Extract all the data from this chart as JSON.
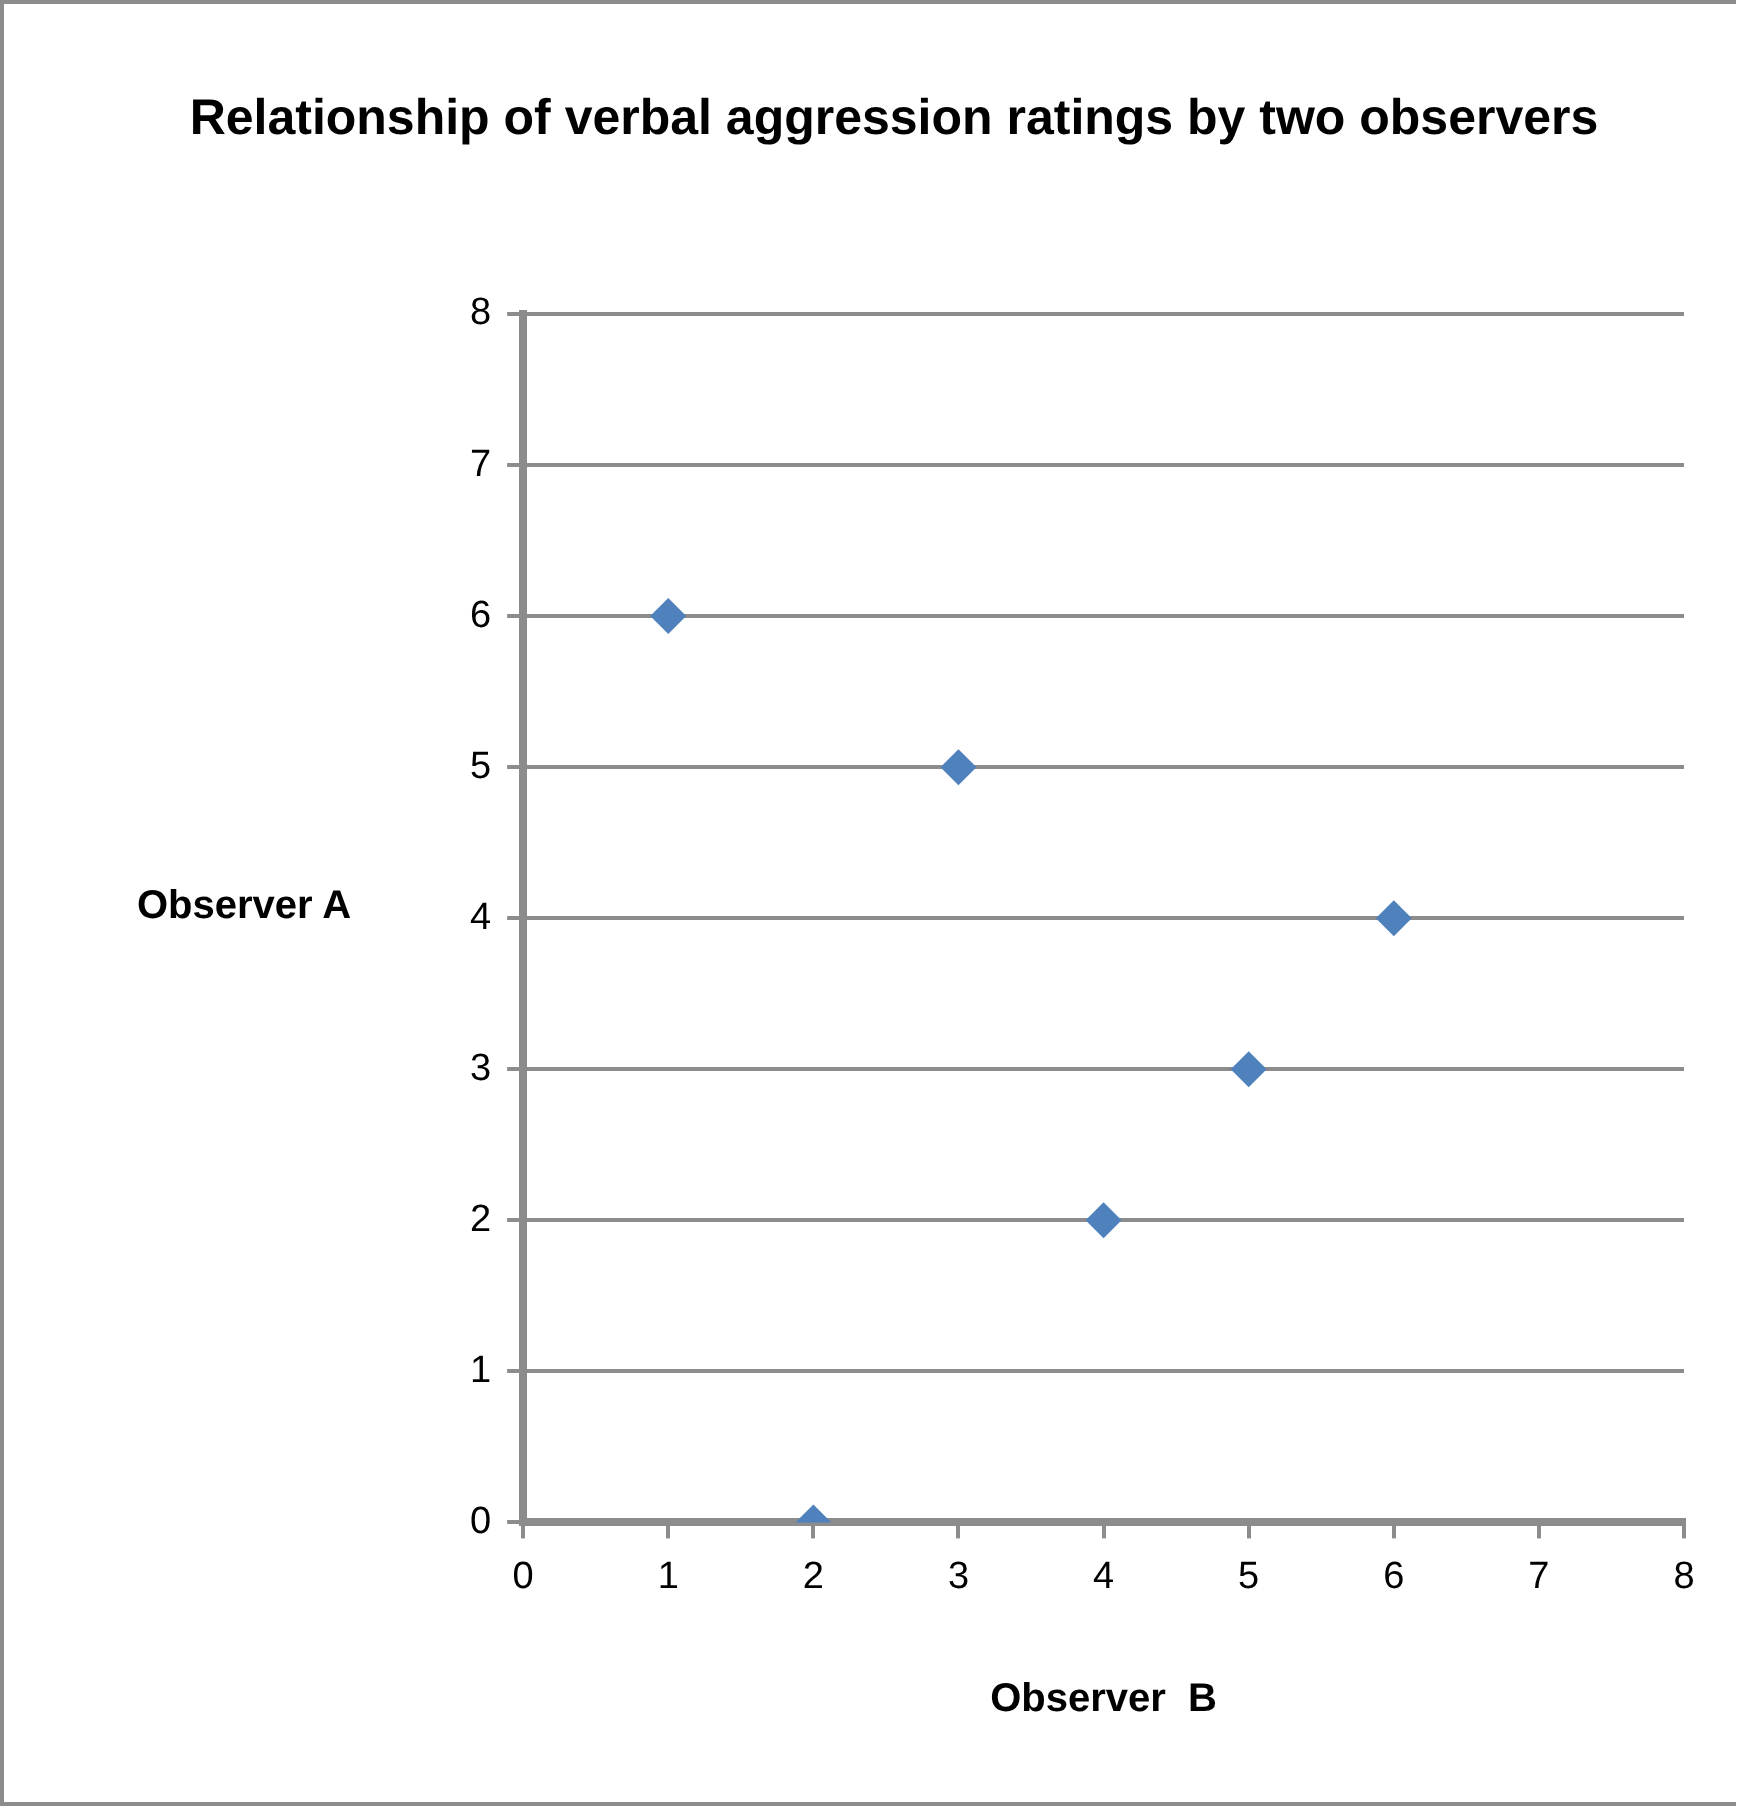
{
  "chart_data": {
    "type": "scatter",
    "title": "Relationship of verbal aggression ratings by two observers",
    "xlabel": "Observer  B",
    "ylabel": "Observer A",
    "x": [
      1,
      3,
      6,
      5,
      4,
      2
    ],
    "values": [
      6,
      5,
      4,
      3,
      2,
      0
    ],
    "color": "#4f81bd",
    "marker": "diamond",
    "xlim": [
      0,
      8
    ],
    "xticks": [
      0,
      1,
      2,
      3,
      4,
      5,
      6,
      7,
      8
    ],
    "ylim": [
      0,
      8
    ],
    "yticks": [
      0,
      1,
      2,
      3,
      4,
      5,
      6,
      7,
      8
    ],
    "grid": "y"
  }
}
